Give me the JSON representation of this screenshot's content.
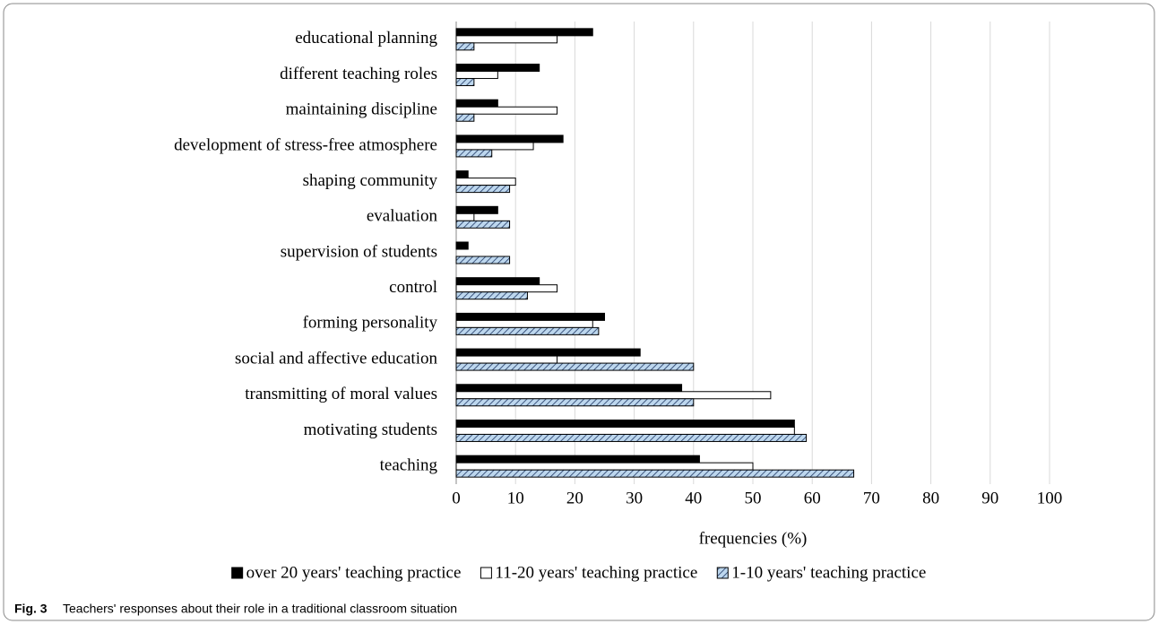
{
  "chart_data": {
    "type": "bar",
    "orientation": "horizontal",
    "xlabel": "frequencies (%)",
    "categories": [
      "educational planning",
      "different teaching roles",
      "maintaining discipline",
      "development of stress-free atmosphere",
      "shaping community",
      "evaluation",
      "supervision of students",
      "control",
      "forming personality",
      "social and affective education",
      "transmitting of moral values",
      "motivating students",
      "teaching"
    ],
    "series": [
      {
        "name": "over 20 years' teaching practice",
        "color": "#000000",
        "values": [
          23,
          14,
          7,
          18,
          2,
          7,
          2,
          14,
          25,
          31,
          38,
          57,
          41
        ]
      },
      {
        "name": "11-20 years' teaching practice",
        "color": "#ffffff",
        "values": [
          17,
          7,
          17,
          13,
          10,
          3,
          0,
          17,
          23,
          17,
          53,
          57,
          50
        ]
      },
      {
        "name": "1-10 years' teaching practice",
        "color": "#bdd7ee",
        "pattern": "hatch",
        "values": [
          3,
          3,
          3,
          6,
          9,
          9,
          9,
          12,
          24,
          40,
          40,
          59,
          67
        ]
      }
    ],
    "xlim": [
      0,
      100
    ],
    "xticks": [
      0,
      10,
      20,
      30,
      40,
      50,
      60,
      70,
      80,
      90,
      100
    ],
    "grid": true,
    "legend": "bottom"
  },
  "caption": {
    "label": "Fig. 3",
    "text": "Teachers' responses about their role in a traditional classroom situation"
  }
}
